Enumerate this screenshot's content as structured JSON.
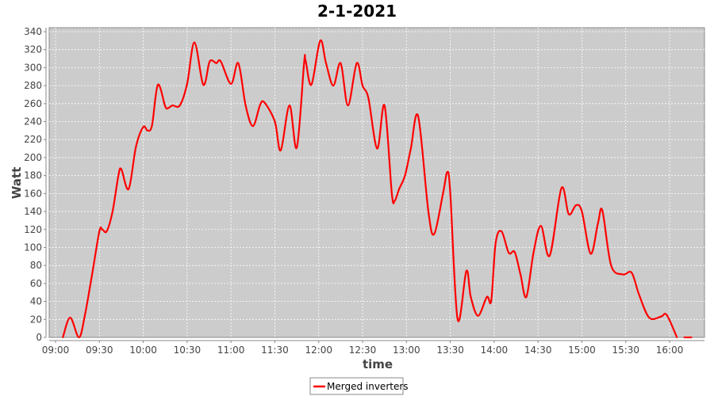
{
  "chart_data": {
    "type": "line",
    "title": "2-1-2021",
    "xlabel": "time",
    "ylabel": "Watt",
    "ylim": [
      0,
      340
    ],
    "xlim": [
      "09:00",
      "16:24"
    ],
    "grid": true,
    "legend_placement": "bottom",
    "yticks": [
      "0",
      "20",
      "40",
      "60",
      "80",
      "100",
      "120",
      "140",
      "160",
      "180",
      "200",
      "220",
      "240",
      "260",
      "280",
      "300",
      "320",
      "340"
    ],
    "xticks": [
      "09:00",
      "09:30",
      "10:00",
      "10:30",
      "11:00",
      "11:30",
      "12:00",
      "12:30",
      "13:00",
      "13:30",
      "14:00",
      "14:30",
      "15:00",
      "15:30",
      "16:00"
    ],
    "colors": {
      "series": "#ff0000",
      "plot_background": "#cccccc",
      "grid": "#ffffff"
    },
    "series": [
      {
        "name": "Merged inverters",
        "points": [
          [
            "09:05",
            0
          ],
          [
            "09:10",
            22
          ],
          [
            "09:16",
            0
          ],
          [
            "09:20",
            24
          ],
          [
            "09:25",
            70
          ],
          [
            "09:30",
            118
          ],
          [
            "09:32",
            120
          ],
          [
            "09:35",
            118
          ],
          [
            "09:39",
            140
          ],
          [
            "09:43",
            180
          ],
          [
            "09:45",
            187
          ],
          [
            "09:50",
            165
          ],
          [
            "09:55",
            212
          ],
          [
            "10:00",
            234
          ],
          [
            "10:03",
            230
          ],
          [
            "10:06",
            236
          ],
          [
            "10:10",
            281
          ],
          [
            "10:15",
            257
          ],
          [
            "10:17",
            255
          ],
          [
            "10:20",
            258
          ],
          [
            "10:25",
            258
          ],
          [
            "10:30",
            282
          ],
          [
            "10:35",
            328
          ],
          [
            "10:41",
            281
          ],
          [
            "10:45",
            305
          ],
          [
            "10:47",
            308
          ],
          [
            "10:50",
            305
          ],
          [
            "10:53",
            307
          ],
          [
            "11:00",
            282
          ],
          [
            "11:05",
            305
          ],
          [
            "11:10",
            258
          ],
          [
            "11:15",
            235
          ],
          [
            "11:20",
            259
          ],
          [
            "11:23",
            261
          ],
          [
            "11:30",
            240
          ],
          [
            "11:34",
            208
          ],
          [
            "11:40",
            258
          ],
          [
            "11:45",
            211
          ],
          [
            "11:50",
            305
          ],
          [
            "11:51",
            308
          ],
          [
            "11:55",
            281
          ],
          [
            "12:01",
            330
          ],
          [
            "12:05",
            305
          ],
          [
            "12:10",
            280
          ],
          [
            "12:15",
            305
          ],
          [
            "12:20",
            258
          ],
          [
            "12:26",
            305
          ],
          [
            "12:30",
            280
          ],
          [
            "12:34",
            266
          ],
          [
            "12:40",
            210
          ],
          [
            "12:45",
            258
          ],
          [
            "12:50",
            160
          ],
          [
            "12:52",
            152
          ],
          [
            "12:55",
            165
          ],
          [
            "12:59",
            180
          ],
          [
            "13:03",
            210
          ],
          [
            "13:08",
            246
          ],
          [
            "13:15",
            140
          ],
          [
            "13:19",
            115
          ],
          [
            "13:25",
            160
          ],
          [
            "13:28",
            184
          ],
          [
            "13:30",
            160
          ],
          [
            "13:35",
            20
          ],
          [
            "13:41",
            74
          ],
          [
            "13:44",
            45
          ],
          [
            "13:49",
            24
          ],
          [
            "13:55",
            45
          ],
          [
            "13:58",
            41
          ],
          [
            "14:01",
            105
          ],
          [
            "14:05",
            118
          ],
          [
            "14:10",
            94
          ],
          [
            "14:14",
            95
          ],
          [
            "14:18",
            70
          ],
          [
            "14:22",
            45
          ],
          [
            "14:27",
            95
          ],
          [
            "14:32",
            124
          ],
          [
            "14:38",
            91
          ],
          [
            "14:46",
            166
          ],
          [
            "14:51",
            137
          ],
          [
            "14:56",
            147
          ],
          [
            "15:00",
            140
          ],
          [
            "15:06",
            93
          ],
          [
            "15:11",
            127
          ],
          [
            "15:14",
            141
          ],
          [
            "15:20",
            80
          ],
          [
            "15:28",
            70
          ],
          [
            "15:34",
            72
          ],
          [
            "15:39",
            48
          ],
          [
            "15:46",
            22
          ],
          [
            "15:54",
            23
          ],
          [
            "15:58",
            25
          ],
          [
            "16:05",
            0
          ],
          null,
          [
            "16:10",
            0
          ],
          [
            "16:15",
            0
          ]
        ]
      }
    ]
  }
}
